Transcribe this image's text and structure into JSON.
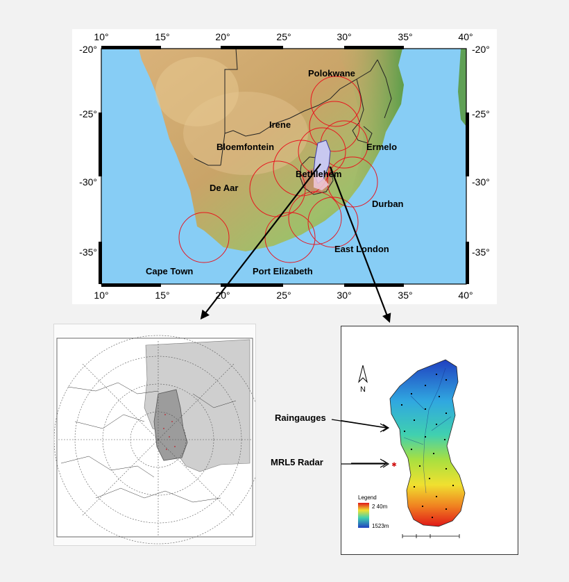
{
  "main_map": {
    "x_ticks": [
      "10°",
      "15°",
      "20°",
      "25°",
      "30°",
      "35°",
      "40°"
    ],
    "y_ticks": [
      "-20°",
      "-25°",
      "-30°",
      "-35°"
    ],
    "cities": [
      {
        "name": "Polokwane"
      },
      {
        "name": "Irene"
      },
      {
        "name": "Bloemfontein"
      },
      {
        "name": "Ermelo"
      },
      {
        "name": "Bethlehem"
      },
      {
        "name": "De Aar"
      },
      {
        "name": "Durban"
      },
      {
        "name": "East London"
      },
      {
        "name": "Cape Town"
      },
      {
        "name": "Port Elizabeth"
      }
    ],
    "colors": {
      "ocean": "#87cdf5",
      "radar_circle": "#e8141e",
      "catchment_fill": "#c8c8f0"
    }
  },
  "catchment_panel": {
    "north_label": "N",
    "legend_title": "Legend",
    "legend_high": "2 40m",
    "legend_low": "1523m",
    "callouts": {
      "raingauges": "Raingauges",
      "radar": "MRL5 Radar"
    }
  }
}
